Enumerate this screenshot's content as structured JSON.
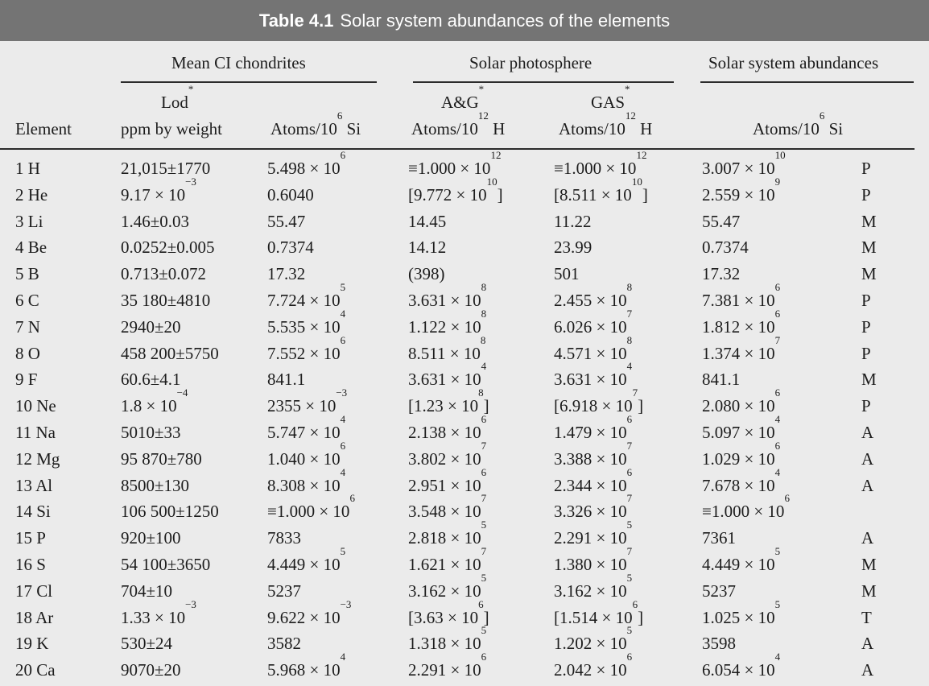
{
  "title": {
    "label": "Table 4.1",
    "text": "Solar system abundances of the elements"
  },
  "groups": {
    "chondrites": "Mean CI chondrites",
    "photosphere": "Solar photosphere",
    "solar_system": "Solar system abundances"
  },
  "columns": {
    "element": "Element",
    "lod_top": "Lod",
    "lod_bottom": "ppm by weight",
    "ci_atoms_base": "Atoms/10",
    "ci_atoms_exp": "6",
    "ci_atoms_tail": " Si",
    "ag_top": "A&G",
    "ag_base": "Atoms/10",
    "ag_exp": "12",
    "ag_tail": " H",
    "gas_top": "GAS",
    "gas_base": "Atoms/10",
    "gas_exp": "12",
    "gas_tail": " H",
    "ss_base": "Atoms/10",
    "ss_exp": "6",
    "ss_tail": " Si",
    "star": "*"
  },
  "rows": [
    [
      "1 H",
      "21,015±1770",
      "5.498 × 10^6",
      "≡1.000 × 10^12",
      "≡1.000 × 10^12",
      "3.007 × 10^10",
      "P"
    ],
    [
      "2 He",
      "9.17 × 10^−3",
      "0.6040",
      "[9.772 × 10^10]",
      "[8.511 × 10^10]",
      "2.559 × 10^9",
      "P"
    ],
    [
      "3 Li",
      "1.46±0.03",
      "55.47",
      "14.45",
      "11.22",
      "55.47",
      "M"
    ],
    [
      "4 Be",
      "0.0252±0.005",
      "0.7374",
      "14.12",
      "23.99",
      "0.7374",
      "M"
    ],
    [
      "5 B",
      "0.713±0.072",
      "17.32",
      "(398)",
      "501",
      "17.32",
      "M"
    ],
    [
      "6 C",
      "35 180±4810",
      "7.724 × 10^5",
      "3.631 × 10^8",
      "2.455 × 10^8",
      "7.381 × 10^6",
      "P"
    ],
    [
      "7 N",
      "2940±20",
      "5.535 × 10^4",
      "1.122 × 10^8",
      "6.026 × 10^7",
      "1.812 × 10^6",
      "P"
    ],
    [
      "8 O",
      "458 200±5750",
      "7.552 × 10^6",
      "8.511 × 10^8",
      "4.571 × 10^8",
      "1.374 × 10^7",
      "P"
    ],
    [
      "9 F",
      "60.6±4.1",
      "841.1",
      "3.631 × 10^4",
      "3.631 × 10^4",
      "841.1",
      "M"
    ],
    [
      "10 Ne",
      "1.8 × 10^−4",
      "2355 × 10^−3",
      "[1.23 × 10^8]",
      "[6.918 × 10^7]",
      "2.080 × 10^6",
      "P"
    ],
    [
      "11 Na",
      "5010±33",
      "5.747 × 10^4",
      "2.138 × 10^6",
      "1.479 × 10^6",
      "5.097 × 10^4",
      "A"
    ],
    [
      "12 Mg",
      "95 870±780",
      "1.040 × 10^6",
      "3.802 × 10^7",
      "3.388 × 10^7",
      "1.029 × 10^6",
      "A"
    ],
    [
      "13 Al",
      "8500±130",
      "8.308 × 10^4",
      "2.951 × 10^6",
      "2.344 × 10^6",
      "7.678 × 10^4",
      "A"
    ],
    [
      "14 Si",
      "106 500±1250",
      "≡1.000 × 10^6",
      "3.548 × 10^7",
      "3.326 × 10^7",
      "≡1.000 × 10^6",
      ""
    ],
    [
      "15 P",
      "920±100",
      "7833",
      "2.818 × 10^5",
      "2.291 × 10^5",
      "7361",
      "A"
    ],
    [
      "16 S",
      "54 100±3650",
      "4.449 × 10^5",
      "1.621 × 10^7",
      "1.380 × 10^7",
      "4.449 × 10^5",
      "M"
    ],
    [
      "17 Cl",
      "704±10",
      "5237",
      "3.162 × 10^5",
      "3.162 × 10^5",
      "5237",
      "M"
    ],
    [
      "18 Ar",
      "1.33 × 10^−3",
      "9.622 × 10^−3",
      "[3.63 × 10^6]",
      "[1.514 × 10^6]",
      "1.025 × 10^5",
      "T"
    ],
    [
      "19 K",
      "530±24",
      "3582",
      "1.318 × 10^5",
      "1.202 × 10^5",
      "3598",
      "A"
    ],
    [
      "20 Ca",
      "9070±20",
      "5.968 × 10^4",
      "2.291 × 10^6",
      "2.042 × 10^6",
      "6.054 × 10^4",
      "A"
    ]
  ]
}
